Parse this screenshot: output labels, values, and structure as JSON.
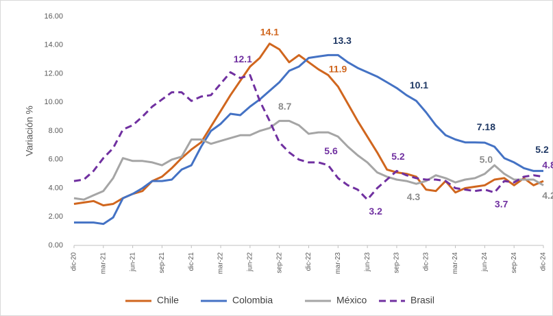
{
  "chart_data": {
    "type": "line",
    "y_label": "Variación %",
    "categories": [
      "dic-20",
      null,
      null,
      "mar-21",
      null,
      null,
      "jun-21",
      null,
      null,
      "sep-21",
      null,
      null,
      "dic-21",
      null,
      null,
      "mar-22",
      null,
      null,
      "jun-22",
      null,
      null,
      "sep-22",
      null,
      null,
      "dic-22",
      null,
      null,
      "mar-23",
      null,
      null,
      "jun-23",
      null,
      null,
      "sep-23",
      null,
      null,
      "dic-23",
      null,
      null,
      "mar-24",
      null,
      null,
      "jun-24",
      null,
      null,
      "sep-24",
      null,
      null,
      "dic-24"
    ],
    "ylim": [
      0,
      16
    ],
    "yticks": [
      {
        "value": 0,
        "label": "0.00"
      },
      {
        "value": 2,
        "label": "2.00"
      },
      {
        "value": 4,
        "label": "4.00"
      },
      {
        "value": 6,
        "label": "6.00"
      },
      {
        "value": 8,
        "label": "8.00"
      },
      {
        "value": 10,
        "label": "10.00"
      },
      {
        "value": 12,
        "label": "12.00"
      },
      {
        "value": 14,
        "label": "14.00"
      },
      {
        "value": 16,
        "label": "16.00"
      }
    ],
    "grid": false,
    "legend": "bottom",
    "series": [
      {
        "name": "Chile",
        "color": "#d0661e",
        "label_color": "#d0661e",
        "dashed": false,
        "values": [
          2.9,
          3.0,
          3.1,
          2.8,
          2.9,
          3.3,
          3.6,
          3.8,
          4.5,
          4.8,
          5.4,
          6.1,
          6.7,
          7.2,
          8.3,
          9.4,
          10.5,
          11.5,
          12.5,
          13.1,
          14.1,
          13.7,
          12.8,
          13.3,
          12.8,
          12.3,
          11.9,
          11.1,
          9.9,
          8.7,
          7.6,
          6.5,
          5.3,
          5.1,
          5.0,
          4.8,
          3.9,
          3.8,
          4.5,
          3.7,
          4.0,
          4.1,
          4.2,
          4.6,
          4.7,
          4.2,
          4.7,
          4.2,
          4.5
        ],
        "value_labels": [
          null,
          null,
          null,
          null,
          null,
          null,
          null,
          null,
          null,
          null,
          null,
          null,
          null,
          null,
          null,
          null,
          null,
          null,
          null,
          null,
          "14.1",
          null,
          null,
          null,
          null,
          null,
          "11.9",
          null,
          null,
          null,
          null,
          null,
          null,
          null,
          null,
          null,
          null,
          null,
          null,
          null,
          null,
          null,
          null,
          null,
          null,
          null,
          null,
          null,
          null
        ]
      },
      {
        "name": "Colombia",
        "color": "#4472c4",
        "label_color": "#1f3864",
        "dashed": false,
        "values": [
          1.6,
          1.6,
          1.6,
          1.5,
          1.95,
          3.3,
          3.6,
          4.0,
          4.5,
          4.5,
          4.6,
          5.3,
          5.6,
          6.9,
          8.0,
          8.5,
          9.2,
          9.1,
          9.7,
          10.2,
          10.8,
          11.4,
          12.2,
          12.5,
          13.1,
          13.2,
          13.3,
          13.3,
          12.8,
          12.4,
          12.1,
          11.8,
          11.4,
          11.0,
          10.5,
          10.1,
          9.3,
          8.4,
          7.7,
          7.4,
          7.2,
          7.2,
          7.18,
          6.9,
          6.1,
          5.8,
          5.4,
          5.2,
          5.2
        ],
        "value_labels": [
          null,
          null,
          null,
          null,
          null,
          null,
          null,
          null,
          null,
          null,
          null,
          null,
          null,
          null,
          null,
          null,
          null,
          null,
          null,
          null,
          null,
          null,
          null,
          null,
          null,
          null,
          null,
          "13.3",
          null,
          null,
          null,
          null,
          null,
          null,
          null,
          "10.1",
          null,
          null,
          null,
          null,
          null,
          null,
          "7.18",
          null,
          null,
          null,
          null,
          null,
          "5.2"
        ]
      },
      {
        "name": "México",
        "color": "#a5a5a5",
        "label_color": "#8c8c8c",
        "dashed": false,
        "values": [
          3.3,
          3.2,
          3.5,
          3.8,
          4.7,
          6.1,
          5.9,
          5.9,
          5.8,
          5.6,
          6.0,
          6.2,
          7.4,
          7.4,
          7.1,
          7.3,
          7.5,
          7.7,
          7.7,
          8.0,
          8.2,
          8.7,
          8.7,
          8.4,
          7.8,
          7.9,
          7.9,
          7.6,
          6.9,
          6.3,
          5.8,
          5.1,
          4.8,
          4.6,
          4.5,
          4.3,
          4.5,
          4.9,
          4.7,
          4.4,
          4.6,
          4.7,
          5.0,
          5.6,
          5.0,
          4.6,
          4.6,
          4.6,
          4.2
        ],
        "value_labels": [
          null,
          null,
          null,
          null,
          null,
          null,
          null,
          null,
          null,
          null,
          null,
          null,
          null,
          null,
          null,
          null,
          null,
          null,
          null,
          null,
          null,
          "8.7",
          null,
          null,
          null,
          null,
          null,
          null,
          null,
          null,
          null,
          null,
          null,
          null,
          null,
          "4.3",
          null,
          null,
          null,
          null,
          null,
          null,
          "5.0",
          null,
          null,
          null,
          null,
          null,
          "4.2"
        ]
      },
      {
        "name": "Brasil",
        "color": "#7030a0",
        "label_color": "#7030a0",
        "dashed": true,
        "values": [
          4.5,
          4.6,
          5.2,
          6.1,
          6.8,
          8.1,
          8.4,
          9.0,
          9.7,
          10.2,
          10.7,
          10.7,
          10.1,
          10.4,
          10.5,
          11.3,
          12.1,
          11.7,
          11.9,
          10.1,
          8.7,
          7.2,
          6.5,
          6.0,
          5.8,
          5.8,
          5.6,
          4.7,
          4.2,
          3.9,
          3.2,
          4.0,
          4.6,
          5.2,
          4.9,
          4.7,
          4.6,
          4.6,
          4.5,
          4.0,
          3.9,
          3.8,
          3.9,
          3.7,
          4.5,
          4.4,
          4.8,
          4.9,
          4.8
        ],
        "value_labels": [
          null,
          null,
          null,
          null,
          null,
          null,
          null,
          null,
          null,
          null,
          null,
          null,
          null,
          null,
          null,
          null,
          "12.1",
          null,
          null,
          null,
          null,
          null,
          null,
          null,
          null,
          null,
          "5.6",
          null,
          null,
          null,
          "3.2",
          null,
          null,
          "5.2",
          null,
          null,
          null,
          null,
          null,
          null,
          null,
          null,
          null,
          "3.7",
          null,
          null,
          null,
          null,
          "4.8"
        ]
      }
    ]
  }
}
